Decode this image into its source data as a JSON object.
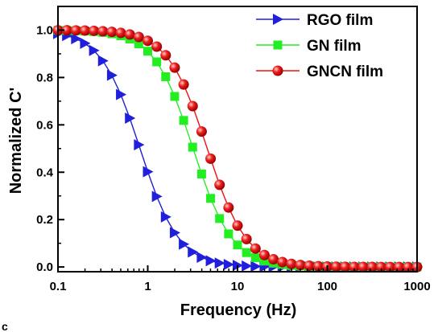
{
  "chart_data": {
    "type": "line",
    "title": "",
    "xlabel": "Frequency (Hz)",
    "ylabel": "Normalized C'",
    "xscale": "log",
    "xlim": [
      0.1,
      1000
    ],
    "ylim": [
      -0.02,
      1.1
    ],
    "xticks": [
      0.1,
      1,
      10,
      100,
      1000
    ],
    "xtick_labels": [
      "0.1",
      "1",
      "10",
      "100",
      "1000"
    ],
    "yticks": [
      0.0,
      0.2,
      0.4,
      0.6,
      0.8,
      1.0
    ],
    "ytick_labels": [
      "0.0",
      "0.2",
      "0.4",
      "0.6",
      "0.8",
      "1.0"
    ],
    "grid": false,
    "legend_position": "top-right",
    "corner_label": "c",
    "series": [
      {
        "name": "RGO film",
        "color": "#1f1fdc",
        "marker": "right-triangle",
        "fc": 0.82
      },
      {
        "name": "GN film",
        "color": "#22ee22",
        "marker": "square",
        "fc": 3.2
      },
      {
        "name": "GNCN film",
        "color": "#ee1111",
        "marker": "circle",
        "fc": 4.6
      }
    ]
  }
}
